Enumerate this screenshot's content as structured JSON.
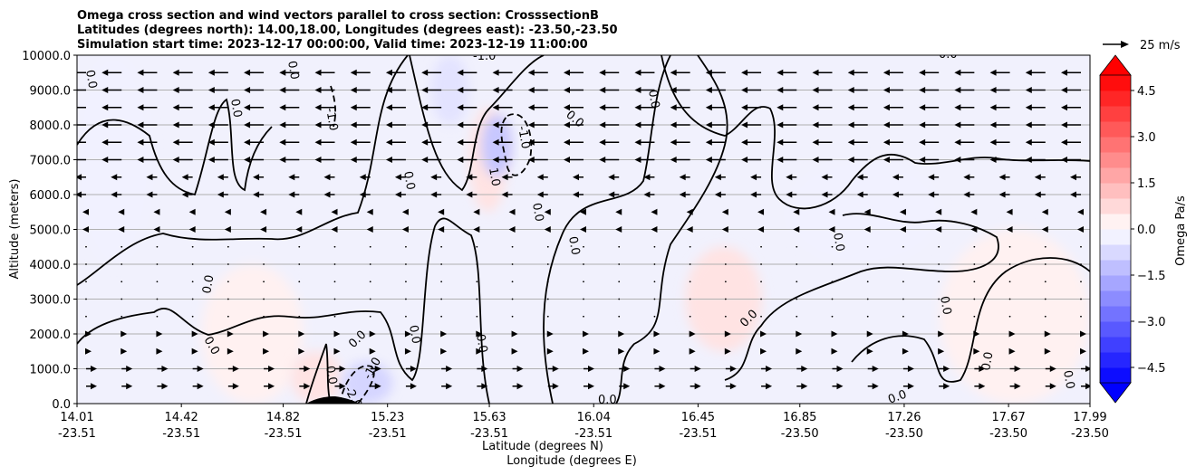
{
  "chart_data": {
    "type": "heatmap",
    "title_lines": [
      "Omega cross section and wind vectors parallel to cross section: CrosssectionB",
      "Latitudes (degrees north): 14.00,18.00, Longitudes (degrees east): -23.50,-23.50",
      "Simulation start time: 2023-12-17 00:00:00, Valid time: 2023-12-19 11:00:00"
    ],
    "xlabel_lines": [
      "Latitude (degrees N)",
      "Longitude (degrees E)"
    ],
    "ylabel": "Altitude (meters)",
    "ylim": [
      0,
      10000
    ],
    "xlim": [
      14.01,
      17.99
    ],
    "y_ticks": [
      {
        "v": 0,
        "label": "0.0"
      },
      {
        "v": 1000,
        "label": "1000.0"
      },
      {
        "v": 2000,
        "label": "2000.0"
      },
      {
        "v": 3000,
        "label": "3000.0"
      },
      {
        "v": 4000,
        "label": "4000.0"
      },
      {
        "v": 5000,
        "label": "5000.0"
      },
      {
        "v": 6000,
        "label": "6000.0"
      },
      {
        "v": 7000,
        "label": "7000.0"
      },
      {
        "v": 8000,
        "label": "8000.0"
      },
      {
        "v": 9000,
        "label": "9000.0"
      },
      {
        "v": 10000,
        "label": "10000.0"
      }
    ],
    "x_ticks": [
      {
        "v": 14.01,
        "lat": "14.01",
        "lon": "-23.51"
      },
      {
        "v": 14.42,
        "lat": "14.42",
        "lon": "-23.51"
      },
      {
        "v": 14.82,
        "lat": "14.82",
        "lon": "-23.51"
      },
      {
        "v": 15.23,
        "lat": "15.23",
        "lon": "-23.51"
      },
      {
        "v": 15.63,
        "lat": "15.63",
        "lon": "-23.51"
      },
      {
        "v": 16.04,
        "lat": "16.04",
        "lon": "-23.51"
      },
      {
        "v": 16.45,
        "lat": "16.45",
        "lon": "-23.51"
      },
      {
        "v": 16.85,
        "lat": "16.85",
        "lon": "-23.50"
      },
      {
        "v": 17.26,
        "lat": "17.26",
        "lon": "-23.50"
      },
      {
        "v": 17.67,
        "lat": "17.67",
        "lon": "-23.50"
      },
      {
        "v": 17.99,
        "lat": "17.99",
        "lon": "-23.50"
      }
    ],
    "grid": "horizontal",
    "colorbar": {
      "label": "Omega Pa/s",
      "range": [
        -5.0,
        5.0
      ],
      "ticks": [
        {
          "v": 4.5,
          "label": "4.5"
        },
        {
          "v": 3.0,
          "label": "3.0"
        },
        {
          "v": 1.5,
          "label": "1.5"
        },
        {
          "v": 0.0,
          "label": "0.0"
        },
        {
          "v": -1.5,
          "label": "−1.5"
        },
        {
          "v": -3.0,
          "label": "−3.0"
        },
        {
          "v": -4.5,
          "label": "−4.5"
        }
      ],
      "levels": 20,
      "neg_color": "#0000ff",
      "pos_color": "#ff0000"
    },
    "quiver_key": "25 m/s",
    "wind_direction": "easterly aloft (arrows pointing left), weak westerly below 1500 m",
    "contour_labels": [
      "0.0",
      "-1.0",
      "1.0",
      "-2.0"
    ],
    "omega_regions": [
      {
        "sign": "neg",
        "level": 1,
        "x": [
          14.01,
          14.3
        ],
        "y": [
          4000,
          10000
        ]
      },
      {
        "sign": "pos",
        "level": 1,
        "x": [
          14.5,
          14.9
        ],
        "y": [
          0,
          4000
        ]
      },
      {
        "sign": "pos",
        "level": 2,
        "x": [
          14.85,
          15.05
        ],
        "y": [
          0,
          1500
        ]
      },
      {
        "sign": "neg",
        "level": 3,
        "x": [
          15.05,
          15.25
        ],
        "y": [
          0,
          1200
        ]
      },
      {
        "sign": "pos",
        "level": 2,
        "x": [
          15.55,
          15.7
        ],
        "y": [
          5500,
          8500
        ]
      },
      {
        "sign": "neg",
        "level": 4,
        "x": [
          15.6,
          15.72
        ],
        "y": [
          6500,
          8300
        ]
      },
      {
        "sign": "neg",
        "level": 2,
        "x": [
          15.4,
          15.55
        ],
        "y": [
          8000,
          10000
        ]
      },
      {
        "sign": "pos",
        "level": 2,
        "x": [
          16.4,
          16.7
        ],
        "y": [
          1500,
          4500
        ]
      },
      {
        "sign": "neg",
        "level": 1,
        "x": [
          16.8,
          17.4
        ],
        "y": [
          4000,
          7000
        ]
      },
      {
        "sign": "pos",
        "level": 1,
        "x": [
          17.4,
          17.99
        ],
        "y": [
          0,
          5000
        ]
      }
    ]
  }
}
